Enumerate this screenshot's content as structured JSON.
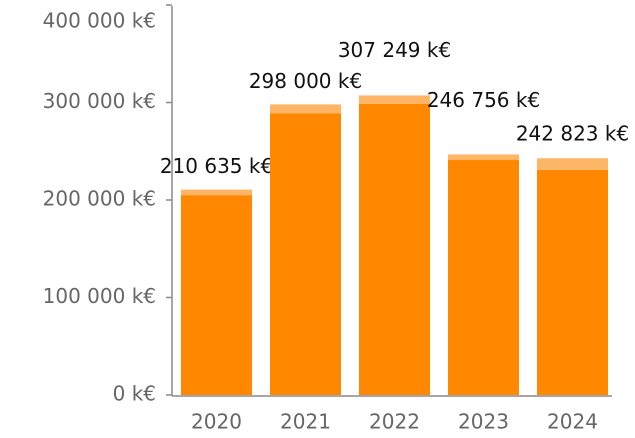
{
  "chart_data": {
    "type": "stacked-bar",
    "categories": [
      "2020",
      "2021",
      "2022",
      "2023",
      "2024"
    ],
    "series": [
      {
        "color": "#ff8800",
        "values": [
          205000,
          289000,
          298500,
          241000,
          231000
        ]
      },
      {
        "color": "#ffb566",
        "values": [
          5635,
          9000,
          8749,
          5756,
          11823
        ]
      }
    ],
    "totals": {
      "values": [
        210635,
        298000,
        307249,
        246756,
        242823
      ],
      "value_labels": [
        "210 635 k€",
        "298 000 k€",
        "307 249 k€",
        "246 756 k€",
        "242 823 k€"
      ]
    },
    "ylim": [
      0,
      400000
    ],
    "yticks": [
      {
        "value": 0,
        "label": "0 k€"
      },
      {
        "value": 100000,
        "label": "100 000 k€"
      },
      {
        "value": 200000,
        "label": "200 000 k€"
      },
      {
        "value": 300000,
        "label": "300 000 k€"
      },
      {
        "value": 400000,
        "label": "400 000 k€"
      }
    ]
  }
}
